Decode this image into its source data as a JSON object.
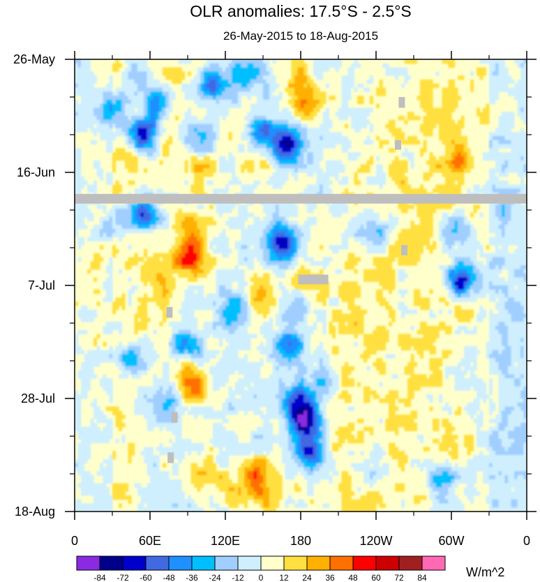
{
  "chart_data": {
    "type": "heatmap",
    "title": "OLR anomalies: 17.5°S - 2.5°S",
    "subtitle": "26-May-2015 to 18-Aug-2015",
    "xlabel": "",
    "ylabel": "",
    "x_tick_labels": [
      "0",
      "60E",
      "120E",
      "180",
      "120W",
      "60W",
      "0"
    ],
    "x_tick_longitudes": [
      0,
      60,
      120,
      180,
      240,
      300,
      360
    ],
    "xlim": [
      0,
      360
    ],
    "y_tick_labels": [
      "26-May",
      "16-Jun",
      "7-Jul",
      "28-Jul",
      "18-Aug"
    ],
    "y_tick_days": [
      0,
      21,
      42,
      63,
      84
    ],
    "ylim_days": [
      0,
      84
    ],
    "colorbar": {
      "units": "W/m^2",
      "levels": [
        "-84",
        "-72",
        "-60",
        "-48",
        "-36",
        "-24",
        "-12",
        "0",
        "12",
        "24",
        "36",
        "48",
        "60",
        "72",
        "84"
      ],
      "colors": [
        "#8a2be2",
        "#00008b",
        "#0000cd",
        "#4169e1",
        "#1e90ff",
        "#00bfff",
        "#a0cfff",
        "#cfefff",
        "#ffffcc",
        "#ffe040",
        "#ffb000",
        "#ff7000",
        "#ff0000",
        "#cc0000",
        "#a02020",
        "#ff69b4"
      ]
    },
    "missing_data_color": "#bebebe",
    "missing_data": [
      {
        "lon_start": 0,
        "lon_end": 360,
        "day_start": 25.0,
        "day_end": 26.8
      },
      {
        "lon_start": 178,
        "lon_end": 202,
        "day_start": 40.0,
        "day_end": 41.8
      },
      {
        "lon_start": 258,
        "lon_end": 263,
        "day_start": 7.0,
        "day_end": 9.0
      },
      {
        "lon_start": 255,
        "lon_end": 260,
        "day_start": 15.0,
        "day_end": 16.8
      },
      {
        "lon_start": 260,
        "lon_end": 265,
        "day_start": 34.5,
        "day_end": 36.4
      },
      {
        "lon_start": 73,
        "lon_end": 78,
        "day_start": 46.0,
        "day_end": 48.0
      },
      {
        "lon_start": 77,
        "lon_end": 82,
        "day_start": 65.5,
        "day_end": 67.5
      },
      {
        "lon_start": 74,
        "lon_end": 79,
        "day_start": 73.0,
        "day_end": 75.0
      }
    ],
    "anomaly_features": [
      {
        "lon": 55,
        "day": 14,
        "value": -72
      },
      {
        "lon": 65,
        "day": 8,
        "value": -48
      },
      {
        "lon": 50,
        "day": 3,
        "value": -36
      },
      {
        "lon": 110,
        "day": 5,
        "value": -60
      },
      {
        "lon": 135,
        "day": 2,
        "value": -36
      },
      {
        "lon": 170,
        "day": 16,
        "value": -72
      },
      {
        "lon": 150,
        "day": 14,
        "value": -48
      },
      {
        "lon": 30,
        "day": 9,
        "value": -36
      },
      {
        "lon": 100,
        "day": 15,
        "value": -36
      },
      {
        "lon": 185,
        "day": 9,
        "value": 36
      },
      {
        "lon": 180,
        "day": 3,
        "value": 24
      },
      {
        "lon": 100,
        "day": 20,
        "value": 24
      },
      {
        "lon": 145,
        "day": 19,
        "value": 24
      },
      {
        "lon": 305,
        "day": 19,
        "value": 24
      },
      {
        "lon": 330,
        "day": 10,
        "value": 12
      },
      {
        "lon": 55,
        "day": 29,
        "value": -60
      },
      {
        "lon": 165,
        "day": 34,
        "value": -72
      },
      {
        "lon": 240,
        "day": 32,
        "value": -36
      },
      {
        "lon": 305,
        "day": 32,
        "value": -36
      },
      {
        "lon": 308,
        "day": 41,
        "value": -72
      },
      {
        "lon": 125,
        "day": 47,
        "value": -36
      },
      {
        "lon": 178,
        "day": 45,
        "value": -36
      },
      {
        "lon": 88,
        "day": 54,
        "value": -48
      },
      {
        "lon": 45,
        "day": 56,
        "value": -36
      },
      {
        "lon": 172,
        "day": 53,
        "value": -48
      },
      {
        "lon": 198,
        "day": 60,
        "value": -36
      },
      {
        "lon": 72,
        "day": 64,
        "value": -36
      },
      {
        "lon": 183,
        "day": 67,
        "value": -84
      },
      {
        "lon": 188,
        "day": 73,
        "value": -60
      },
      {
        "lon": 178,
        "day": 63,
        "value": -48
      },
      {
        "lon": 292,
        "day": 78,
        "value": -36
      },
      {
        "lon": 240,
        "day": 77,
        "value": -24
      },
      {
        "lon": 90,
        "day": 37,
        "value": 48
      },
      {
        "lon": 95,
        "day": 32,
        "value": 36
      },
      {
        "lon": 148,
        "day": 44,
        "value": 36
      },
      {
        "lon": 180,
        "day": 42,
        "value": 36
      },
      {
        "lon": 70,
        "day": 42,
        "value": 24
      },
      {
        "lon": 95,
        "day": 61,
        "value": 36
      },
      {
        "lon": 90,
        "day": 57,
        "value": 24
      },
      {
        "lon": 100,
        "day": 76,
        "value": 24
      },
      {
        "lon": 145,
        "day": 77,
        "value": 36
      },
      {
        "lon": 150,
        "day": 81,
        "value": 24
      },
      {
        "lon": 120,
        "day": 80,
        "value": 24
      },
      {
        "lon": 40,
        "day": 81,
        "value": 12
      },
      {
        "lon": 340,
        "day": 64,
        "value": 12
      },
      {
        "lon": 280,
        "day": 55,
        "value": 12
      },
      {
        "lon": 300,
        "day": 73,
        "value": 24
      },
      {
        "lon": 220,
        "day": 45,
        "value": 12
      },
      {
        "lon": 15,
        "day": 40,
        "value": 12
      },
      {
        "lon": 35,
        "day": 30,
        "value": -24
      },
      {
        "lon": 340,
        "day": 28,
        "value": -12
      }
    ]
  }
}
